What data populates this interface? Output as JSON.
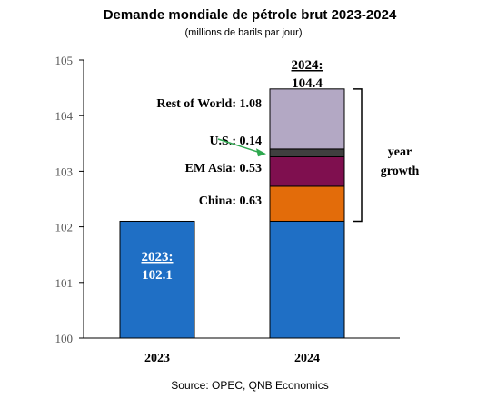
{
  "chart_data": {
    "type": "bar",
    "stacked": true,
    "title": "Demande mondiale de pétrole brut 2023-2024",
    "subtitle": "(millions de barils par jour)",
    "source": "Source: OPEC, QNB Economics",
    "categories": [
      "2023",
      "2024"
    ],
    "ylim": [
      100,
      105
    ],
    "yticks": [
      "100",
      "101",
      "102",
      "103",
      "104",
      "105"
    ],
    "grid": false,
    "base": {
      "values": [
        102.1,
        102.1
      ],
      "color": "#1f6fc5"
    },
    "segments": [
      {
        "name": "China",
        "value": 0.63,
        "label": "China: 0.63",
        "color": "#e36c0a"
      },
      {
        "name": "EM Asia",
        "value": 0.53,
        "label": "EM Asia: 0.53",
        "color": "#7f0f4f"
      },
      {
        "name": "U.S.",
        "value": 0.14,
        "label": "U.S.: 0.14",
        "color": "#3f3f3f"
      },
      {
        "name": "Rest of World",
        "value": 1.08,
        "label": "Rest of World: 1.08",
        "color": "#b3a8c4"
      }
    ],
    "bar_labels": {
      "2023": {
        "year": "2023:",
        "value": "102.1"
      },
      "2024": {
        "year": "2024:",
        "value": "104.4"
      }
    },
    "bracket_label": [
      "year",
      "growth"
    ],
    "arrow_color": "#2ea84f"
  }
}
